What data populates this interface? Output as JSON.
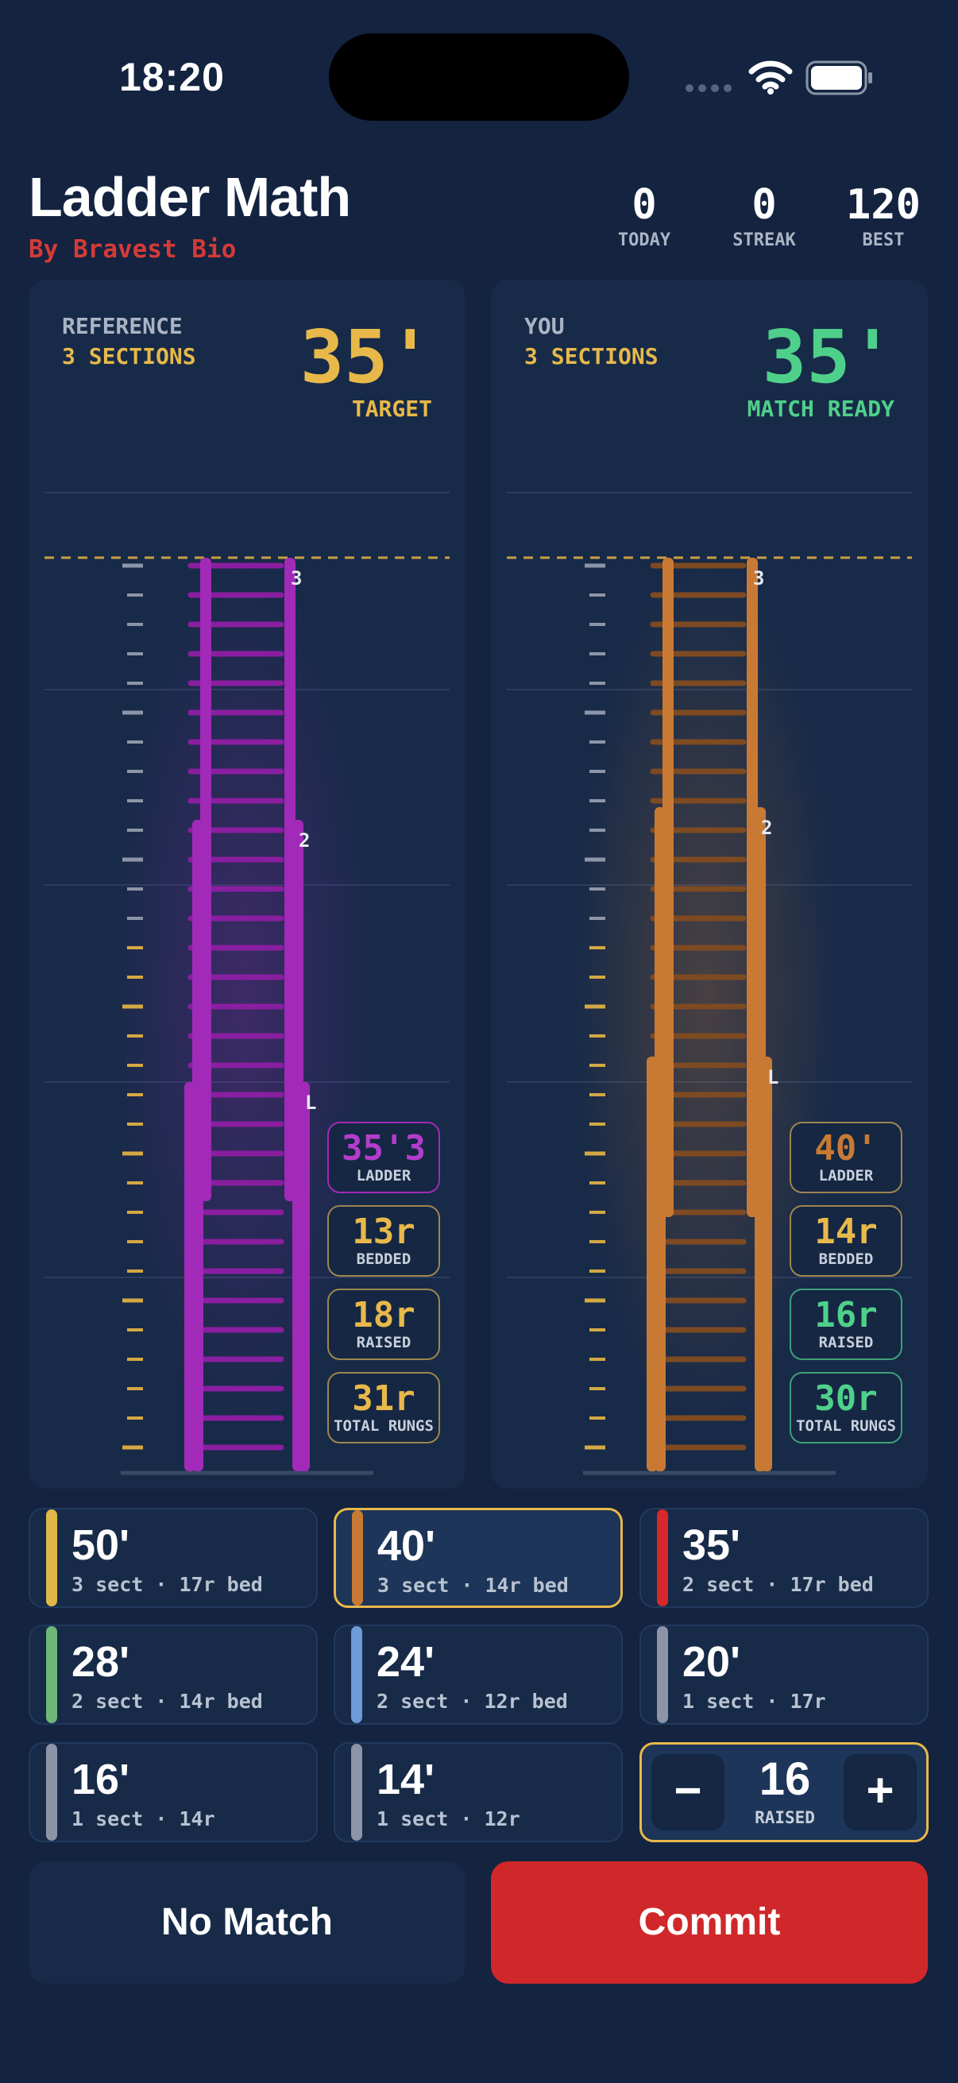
{
  "status_bar": {
    "time": "18:20",
    "icons": [
      "signal-icon",
      "wifi-icon",
      "battery-icon"
    ]
  },
  "header": {
    "title": "Ladder Math",
    "subtitle": "By Bravest Bio",
    "stats": [
      {
        "value": "0",
        "label": "TODAY"
      },
      {
        "value": "0",
        "label": "STREAK"
      },
      {
        "value": "120",
        "label": "BEST"
      }
    ]
  },
  "reference": {
    "label": "REFERENCE",
    "sections": "3 SECTIONS",
    "height": "35'",
    "status": "TARGET",
    "color": "#a12ab8",
    "section_labels": [
      "3",
      "2",
      "L"
    ],
    "chips": [
      {
        "value": "35'3",
        "label": "LADDER"
      },
      {
        "value": "13r",
        "label": "BEDDED"
      },
      {
        "value": "18r",
        "label": "RAISED"
      },
      {
        "value": "31r",
        "label": "TOTAL RUNGS"
      }
    ]
  },
  "you": {
    "label": "YOU",
    "sections": "3 SECTIONS",
    "height": "35'",
    "status": "MATCH READY",
    "color": "#c87a34",
    "section_labels": [
      "3",
      "2",
      "L"
    ],
    "chips": [
      {
        "value": "40'",
        "label": "LADDER"
      },
      {
        "value": "14r",
        "label": "BEDDED"
      },
      {
        "value": "16r",
        "label": "RAISED"
      },
      {
        "value": "30r",
        "label": "TOTAL RUNGS"
      }
    ]
  },
  "options": [
    {
      "value": "50'",
      "sub": "3 sect · 17r bed",
      "color": "#e0b848",
      "selected": false
    },
    {
      "value": "40'",
      "sub": "3 sect · 14r bed",
      "color": "#c87a34",
      "selected": true
    },
    {
      "value": "35'",
      "sub": "2 sect · 17r bed",
      "color": "#d8282a",
      "selected": false
    },
    {
      "value": "28'",
      "sub": "2 sect · 14r bed",
      "color": "#6cb878",
      "selected": false
    },
    {
      "value": "24'",
      "sub": "2 sect · 12r bed",
      "color": "#6e9ad8",
      "selected": false
    },
    {
      "value": "20'",
      "sub": "1 sect · 17r",
      "color": "#8e94a8",
      "selected": false
    },
    {
      "value": "16'",
      "sub": "1 sect · 14r",
      "color": "#8e94a8",
      "selected": false
    },
    {
      "value": "14'",
      "sub": "1 sect · 12r",
      "color": "#8e94a8",
      "selected": false
    }
  ],
  "stepper": {
    "minus": "−",
    "plus": "+",
    "value": "16",
    "label": "RAISED"
  },
  "actions": {
    "no_match": "No Match",
    "commit": "Commit"
  },
  "colors": {
    "background": "#132340",
    "panel": "#172a48",
    "accent_gold": "#e8b94a",
    "accent_green": "#4fd08a",
    "danger": "#d0282a"
  }
}
